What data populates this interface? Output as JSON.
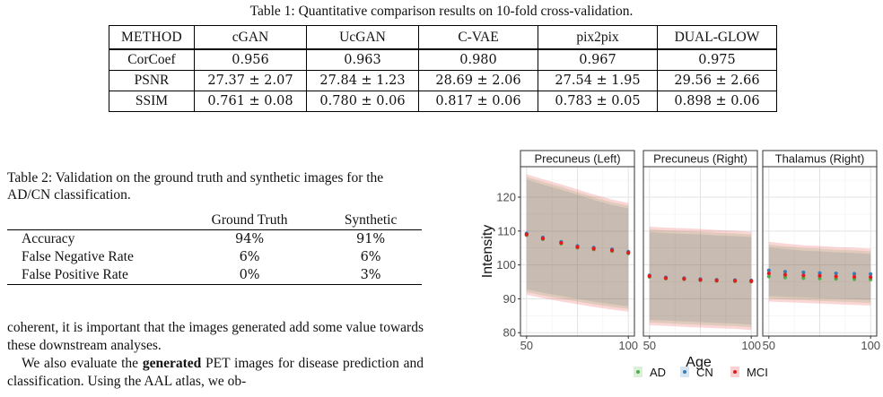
{
  "table1": {
    "caption": "Table 1:  Quantitative comparison results on 10-fold cross-validation.",
    "corner": "METHOD",
    "columns": [
      "cGAN",
      "UcGAN",
      "C-VAE",
      "pix2pix",
      "DUAL-GLOW"
    ],
    "rows": [
      {
        "metric": "CorCoef",
        "values": [
          "0.956",
          "0.963",
          "0.980",
          "0.967",
          "0.975"
        ],
        "bold_index": 2
      },
      {
        "metric": "PSNR",
        "values": [
          "27.37 ± 2.07",
          "27.84 ± 1.23",
          "28.69 ± 2.06",
          "27.54 ± 1.95",
          "29.56 ± 2.66"
        ],
        "bold_index": 4
      },
      {
        "metric": "SSIM",
        "values": [
          "0.761 ± 0.08",
          "0.780 ± 0.06",
          "0.817 ± 0.06",
          "0.783 ± 0.05",
          "0.898 ± 0.06"
        ],
        "bold_index": 4
      }
    ]
  },
  "table2": {
    "caption": "Table 2:  Validation on the ground truth and synthetic images for the AD/CN classification.",
    "columns": [
      "",
      "Ground Truth",
      "Synthetic"
    ],
    "rows": [
      {
        "label": "Accuracy",
        "values": [
          "94%",
          "91%"
        ]
      },
      {
        "label": "False Negative Rate",
        "values": [
          "6%",
          "6%"
        ]
      },
      {
        "label": "False Positive Rate",
        "values": [
          "0%",
          "3%"
        ]
      }
    ]
  },
  "body": {
    "para1": "coherent, it is important that the images generated add some value towards these downstream analyses.",
    "para2_before": "We also evaluate the ",
    "para2_bold": "generated",
    "para2_after": " PET images for disease prediction and classification. Using the AAL atlas, we ob-"
  },
  "chart_data": {
    "type": "scatter",
    "title": "",
    "xlabel": "Age",
    "ylabel": "Intensity",
    "xlim": [
      47,
      103
    ],
    "ylim": [
      79,
      129
    ],
    "x_ticks": [
      50,
      100
    ],
    "y_ticks": [
      80,
      90,
      100,
      110,
      120
    ],
    "grid": true,
    "legend_position": "bottom",
    "colors": {
      "AD": "#4daf4a",
      "CN": "#377eb8",
      "MCI": "#e41a1c",
      "band": "#b3a3a3"
    },
    "legend": [
      "AD",
      "CN",
      "MCI"
    ],
    "panels": [
      {
        "name": "Precuneus (Left)",
        "ages": [
          50,
          58,
          67,
          75,
          83,
          92,
          100
        ],
        "series": [
          {
            "name": "AD",
            "values": [
              108.8,
              107.6,
              106.3,
              105.1,
              104.6,
              104.1,
              103.4
            ]
          },
          {
            "name": "CN",
            "values": [
              109.3,
              108.1,
              106.8,
              105.6,
              105.1,
              104.6,
              103.9
            ]
          },
          {
            "name": "MCI",
            "values": [
              109.0,
              107.8,
              106.5,
              105.3,
              104.8,
              104.3,
              103.6
            ]
          }
        ],
        "band_upper": [
          126,
          124.5,
          123,
          121.5,
          120,
          118.5,
          117.5
        ],
        "band_lower": [
          92,
          91,
          90,
          89.2,
          88.4,
          87.6,
          87
        ]
      },
      {
        "name": "Precuneus (Right)",
        "ages": [
          50,
          58,
          67,
          75,
          83,
          92,
          100
        ],
        "series": [
          {
            "name": "AD",
            "values": [
              96.5,
              96.0,
              95.8,
              95.5,
              95.3,
              95.2,
              95.1
            ]
          },
          {
            "name": "CN",
            "values": [
              96.9,
              96.3,
              96.1,
              95.8,
              95.6,
              95.5,
              95.4
            ]
          },
          {
            "name": "MCI",
            "values": [
              96.7,
              96.1,
              95.9,
              95.6,
              95.4,
              95.3,
              95.2
            ]
          }
        ],
        "band_upper": [
          110.5,
          110.2,
          110,
          109.8,
          109.5,
          109.3,
          109
        ],
        "band_lower": [
          83,
          82.8,
          82.5,
          82.3,
          82.1,
          81.9,
          81.6
        ]
      },
      {
        "name": "Thalamus (Right)",
        "ages": [
          50,
          58,
          67,
          75,
          83,
          92,
          100
        ],
        "series": [
          {
            "name": "AD",
            "values": [
              96.6,
              96.3,
              96.1,
              96.0,
              95.9,
              95.8,
              95.7
            ]
          },
          {
            "name": "CN",
            "values": [
              98.4,
              98.0,
              97.8,
              97.6,
              97.5,
              97.4,
              97.3
            ]
          },
          {
            "name": "MCI",
            "values": [
              97.5,
              97.1,
              96.9,
              96.8,
              96.6,
              96.5,
              96.4
            ]
          }
        ],
        "band_upper": [
          106,
          105.5,
          105,
          104.8,
          104.5,
          104.3,
          104
        ],
        "band_lower": [
          90,
          89.8,
          89.6,
          89.4,
          89.2,
          89,
          88.8
        ]
      }
    ]
  }
}
